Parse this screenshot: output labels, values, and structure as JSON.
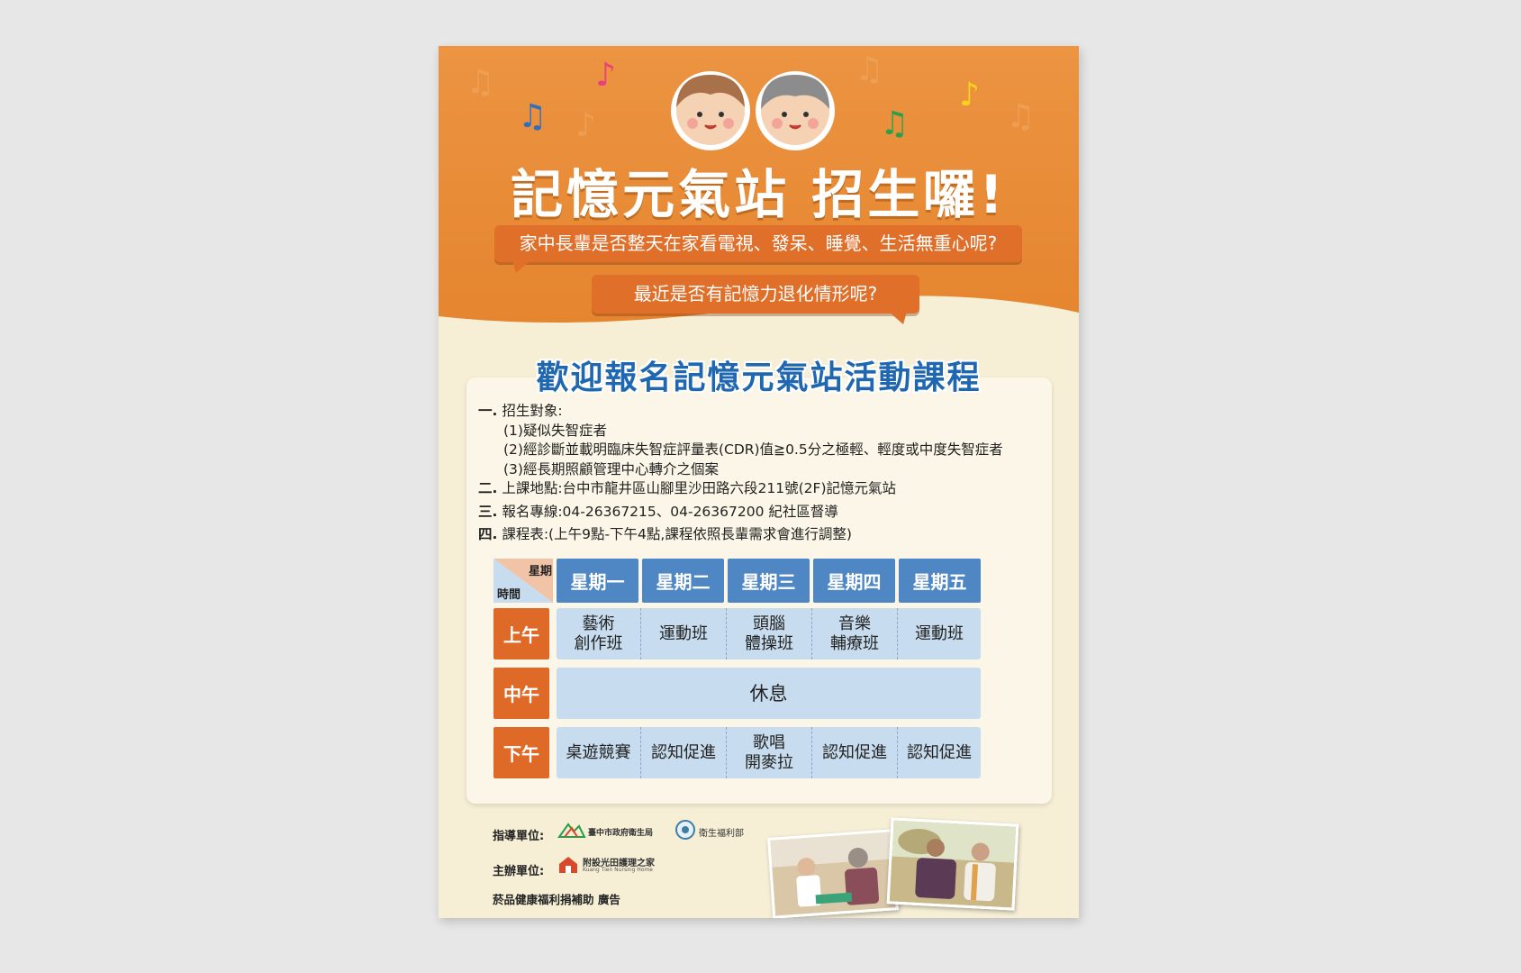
{
  "poster": {
    "title": "記憶元氣站 招生囉!",
    "bubble1": "家中長輩是否整天在家看電視、發呆、睡覺、生活無重心呢?",
    "bubble2": "最近是否有記憶力退化情形呢?",
    "heading": "歡迎報名記憶元氣站活動課程"
  },
  "info": {
    "item1": {
      "num": "一.",
      "text": "招生對象:"
    },
    "sub1": "(1)疑似失智症者",
    "sub2": "(2)經診斷並載明臨床失智症評量表(CDR)值≧0.5分之極輕、輕度或中度失智症者",
    "sub3": "(3)經長期照顧管理中心轉介之個案",
    "item2": {
      "num": "二.",
      "text": "上課地點:台中市龍井區山腳里沙田路六段211號(2F)記憶元氣站"
    },
    "item3": {
      "num": "三.",
      "text": "報名專線:04-26367215、04-26367200  紀社區督導"
    },
    "item4": {
      "num": "四.",
      "text": "課程表:(上午9點-下午4點,課程依照長輩需求會進行調整)"
    }
  },
  "schedule": {
    "corner_top": "星期",
    "corner_bottom": "時間",
    "days": [
      "星期一",
      "星期二",
      "星期三",
      "星期四",
      "星期五"
    ],
    "rows": [
      {
        "label": "上午",
        "cells": [
          "藝術\n創作班",
          "運動班",
          "頭腦\n體操班",
          "音樂\n輔療班",
          "運動班"
        ]
      },
      {
        "label": "中午",
        "span": "休息"
      },
      {
        "label": "下午",
        "cells": [
          "桌遊競賽",
          "認知促進",
          "歌唱\n開麥拉",
          "認知促進",
          "認知促進"
        ]
      }
    ]
  },
  "footer": {
    "guide_label": "指導單位:",
    "guide_org1": "臺中市政府衛生局",
    "guide_org2": "衛生福利部",
    "host_label": "主辦單位:",
    "host_org": "附設光田護理之家",
    "host_org_en": "Kuang Tien Nursing Home",
    "sponsor": "菸品健康福利捐補助 廣告"
  },
  "colors": {
    "orange": "#e98a3b",
    "deep_orange": "#df6a28",
    "blue_header": "#4f86c4",
    "light_blue": "#c7dcee",
    "heading_blue": "#1f67b0",
    "cream": "#f6efd6"
  }
}
